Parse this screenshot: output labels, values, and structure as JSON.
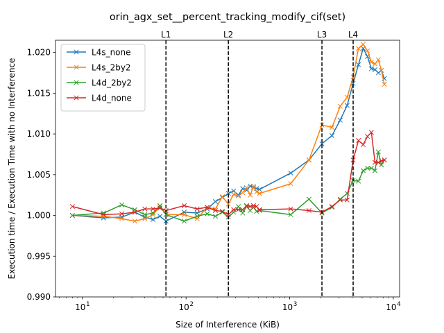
{
  "chart_data": {
    "type": "line",
    "title": "orin_agx_set__percent_tracking_modify_cif(set)",
    "xlabel": "Size of Interference (KiB)",
    "ylabel": "Execution time / Execution Time with no Interference",
    "xscale": "log",
    "xlim": [
      5.5,
      11500
    ],
    "ylim": [
      0.99,
      1.0215
    ],
    "yticks": [
      0.99,
      0.995,
      1.0,
      1.005,
      1.01,
      1.015,
      1.02
    ],
    "ytick_labels": [
      "0.990",
      "0.995",
      "1.000",
      "1.005",
      "1.010",
      "1.015",
      "1.020"
    ],
    "xticks": [
      10,
      100,
      1000,
      10000
    ],
    "xtick_labels": [
      {
        "base": "10",
        "exp": "1"
      },
      {
        "base": "10",
        "exp": "2"
      },
      {
        "base": "10",
        "exp": "3"
      },
      {
        "base": "10",
        "exp": "4"
      }
    ],
    "vlines": [
      {
        "label": "L1",
        "x": 64
      },
      {
        "label": "L2",
        "x": 256
      },
      {
        "label": "L3",
        "x": 2048
      },
      {
        "label": "L4",
        "x": 4096
      }
    ],
    "legend_position": "upper-left",
    "series": [
      {
        "name": "L4s_none",
        "color": "#1f77b4",
        "x": [
          8,
          16,
          24,
          32,
          40,
          48,
          56,
          64,
          96,
          128,
          160,
          192,
          224,
          256,
          288,
          320,
          352,
          384,
          416,
          448,
          480,
          512,
          1024,
          1536,
          2048,
          2560,
          3072,
          3584,
          4096,
          4608,
          5120,
          5632,
          6144,
          6656,
          7168,
          7680,
          8192
        ],
        "y": [
          1.0,
          0.9997,
          0.9998,
          1.0004,
          0.9998,
          0.9995,
          0.9999,
          0.9993,
          1.0004,
          1.0003,
          1.0008,
          1.0017,
          1.0022,
          1.0027,
          1.003,
          1.0025,
          1.0033,
          1.0031,
          1.0036,
          1.0034,
          1.0033,
          1.0032,
          1.0052,
          1.0068,
          1.0088,
          1.0098,
          1.0117,
          1.0135,
          1.0162,
          1.0185,
          1.0205,
          1.0195,
          1.018,
          1.0179,
          1.0175,
          1.0178,
          1.0168
        ]
      },
      {
        "name": "L4s_2by2",
        "color": "#ff7f0e",
        "x": [
          8,
          16,
          24,
          32,
          40,
          48,
          56,
          64,
          96,
          128,
          160,
          192,
          224,
          256,
          288,
          320,
          352,
          384,
          416,
          448,
          480,
          512,
          1024,
          1536,
          2048,
          2560,
          3072,
          3584,
          4096,
          4608,
          5120,
          5632,
          6144,
          6656,
          7168,
          7680,
          8192
        ],
        "y": [
          1.0,
          0.9999,
          0.9996,
          0.9993,
          0.9996,
          1.0001,
          1.0011,
          1.0001,
          1.0001,
          0.9996,
          1.001,
          1.0008,
          1.0023,
          1.0014,
          1.0026,
          1.0024,
          1.0028,
          1.0034,
          1.0025,
          1.0036,
          1.0029,
          1.0027,
          1.0039,
          1.0068,
          1.0111,
          1.0108,
          1.0134,
          1.0145,
          1.017,
          1.0205,
          1.021,
          1.0202,
          1.0188,
          1.0186,
          1.0191,
          1.0178,
          1.0161
        ]
      },
      {
        "name": "L4d_2by2",
        "color": "#2ca02c",
        "x": [
          8,
          16,
          24,
          32,
          40,
          48,
          56,
          64,
          96,
          128,
          160,
          192,
          224,
          256,
          288,
          320,
          352,
          384,
          416,
          448,
          480,
          512,
          1024,
          1536,
          2048,
          2560,
          3072,
          3584,
          4096,
          4608,
          5120,
          5632,
          6144,
          6656,
          7168,
          7680,
          8192
        ],
        "y": [
          1.0,
          1.0003,
          1.0013,
          1.0007,
          1.0001,
          1.0003,
          1.0012,
          1.0001,
          0.9993,
          0.9999,
          1.0002,
          0.9999,
          1.0004,
          0.9998,
          1.0004,
          1.0011,
          1.0003,
          1.0011,
          1.0006,
          1.001,
          1.0005,
          1.0006,
          1.0001,
          1.002,
          1.0003,
          1.001,
          1.002,
          1.0027,
          1.0043,
          1.0042,
          1.0055,
          1.0058,
          1.0058,
          1.0055,
          1.0078,
          1.0062,
          1.0068
        ]
      },
      {
        "name": "L4d_none",
        "color": "#d62728",
        "x": [
          8,
          16,
          24,
          32,
          40,
          48,
          56,
          64,
          96,
          128,
          160,
          192,
          224,
          256,
          288,
          320,
          352,
          384,
          416,
          448,
          480,
          512,
          1024,
          1536,
          2048,
          2560,
          3072,
          3584,
          4096,
          4608,
          5120,
          5632,
          6144,
          6656,
          7168,
          7680,
          8192
        ],
        "y": [
          1.0011,
          1.0001,
          1.0002,
          1.0004,
          1.0008,
          1.0008,
          1.0009,
          1.0006,
          1.0012,
          1.0008,
          1.001,
          1.0006,
          1.0005,
          1.0001,
          1.0007,
          1.0007,
          1.0007,
          1.0012,
          1.0011,
          1.0012,
          1.0011,
          1.0007,
          1.0008,
          1.0006,
          1.0004,
          1.0011,
          1.0019,
          1.0019,
          1.0068,
          1.0092,
          1.0087,
          1.0097,
          1.0102,
          1.0065,
          1.0065,
          1.0067,
          1.0068
        ]
      }
    ]
  }
}
